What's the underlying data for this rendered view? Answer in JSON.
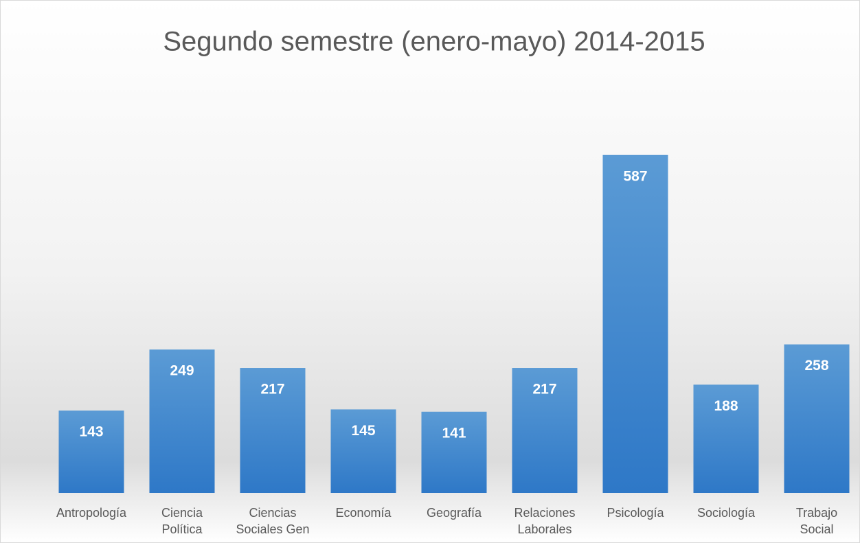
{
  "chart_data": {
    "type": "bar",
    "title": "Segundo semestre (enero-mayo) 2014-2015",
    "categories": [
      "Antropología",
      "Ciencia Política",
      "Ciencias Sociales Gen",
      "Economía",
      "Geografía",
      "Relaciones Laborales",
      "Psicología",
      "Sociología",
      "Trabajo Social"
    ],
    "values": [
      143,
      249,
      217,
      145,
      141,
      217,
      587,
      188,
      258
    ],
    "color": "#4a8fd4",
    "ylim": [
      0,
      700
    ]
  }
}
